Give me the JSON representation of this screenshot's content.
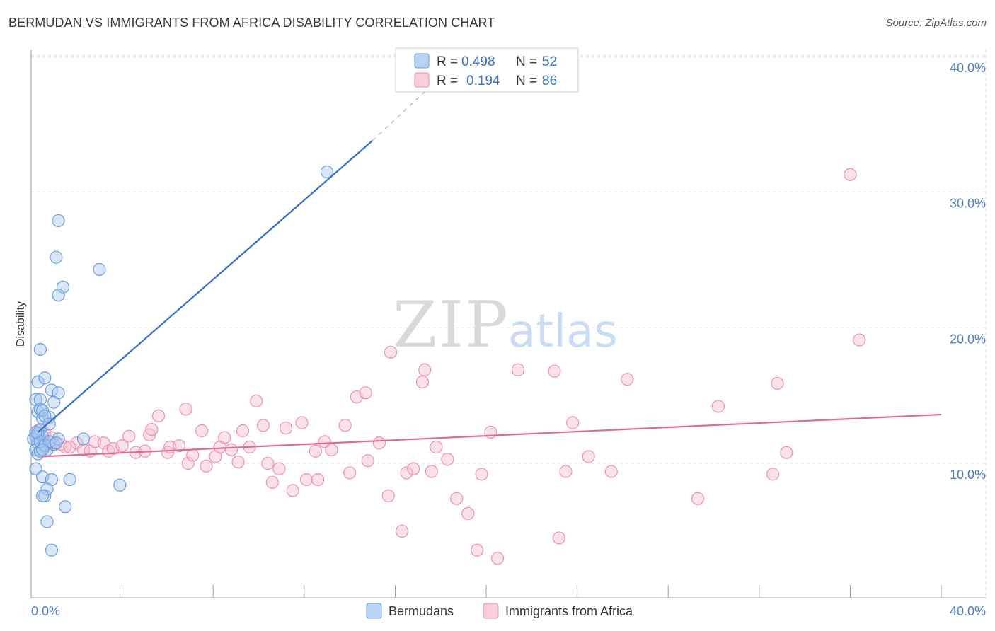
{
  "title": "BERMUDAN VS IMMIGRANTS FROM AFRICA DISABILITY CORRELATION CHART",
  "source": "Source: ZipAtlas.com",
  "watermark": {
    "zip": "ZIP",
    "atlas": "atlas"
  },
  "legend": {
    "rows": [
      {
        "r_label": "R =",
        "r_value": "0.498",
        "n_label": "N =",
        "n_value": "52"
      },
      {
        "r_label": "R =",
        "r_value": "0.194",
        "n_label": "N =",
        "n_value": "86"
      }
    ]
  },
  "bottom_legend": [
    "Bermudans",
    "Immigrants from Africa"
  ],
  "colors": {
    "blue_fill": "#a9c8f0",
    "blue_stroke": "#6a9ee0",
    "blue_line": "#2f6fcf",
    "pink_fill": "#f6bfd0",
    "pink_stroke": "#ee8fb0",
    "pink_line": "#e06a94",
    "grid": "#dddddd",
    "tick_label": "#4a7cc9"
  },
  "chart_data": {
    "type": "scatter",
    "title": "BERMUDAN VS IMMIGRANTS FROM AFRICA DISABILITY CORRELATION CHART",
    "xlabel": "",
    "ylabel": "Disability",
    "xlim": [
      0,
      40
    ],
    "ylim": [
      0,
      42
    ],
    "x_tick_labels": [
      "0.0%",
      "40.0%"
    ],
    "y_ticks": [
      10,
      20,
      30,
      40
    ],
    "y_tick_labels": [
      "10.0%",
      "20.0%",
      "30.0%",
      "40.0%"
    ],
    "series": [
      {
        "name": "Bermudans",
        "r": 0.498,
        "n": 52,
        "trend": {
          "x0": 0.3,
          "y0": 12.3,
          "x1": 15.0,
          "y1": 33.8,
          "dash_x1": 18.0,
          "dash_y1": 38.5
        },
        "points": [
          [
            0.2,
            12.0
          ],
          [
            0.3,
            11.5
          ],
          [
            0.1,
            11.8
          ],
          [
            0.2,
            11.0
          ],
          [
            0.4,
            12.5
          ],
          [
            0.3,
            13.8
          ],
          [
            0.5,
            13.3
          ],
          [
            0.2,
            14.7
          ],
          [
            0.4,
            14.7
          ],
          [
            0.3,
            16.0
          ],
          [
            0.6,
            16.3
          ],
          [
            0.9,
            15.4
          ],
          [
            1.2,
            15.2
          ],
          [
            1.0,
            14.5
          ],
          [
            0.8,
            13.4
          ],
          [
            0.5,
            12.0
          ],
          [
            0.6,
            11.4
          ],
          [
            0.7,
            11.0
          ],
          [
            1.0,
            11.4
          ],
          [
            1.2,
            11.8
          ],
          [
            0.3,
            10.7
          ],
          [
            0.4,
            10.9
          ],
          [
            0.2,
            9.6
          ],
          [
            0.5,
            9.0
          ],
          [
            0.9,
            8.8
          ],
          [
            1.7,
            8.8
          ],
          [
            0.7,
            8.1
          ],
          [
            0.6,
            7.6
          ],
          [
            0.5,
            7.6
          ],
          [
            1.5,
            6.8
          ],
          [
            0.7,
            5.7
          ],
          [
            0.9,
            3.6
          ],
          [
            0.4,
            18.4
          ],
          [
            1.4,
            23.0
          ],
          [
            1.2,
            22.4
          ],
          [
            1.1,
            25.2
          ],
          [
            1.2,
            27.9
          ],
          [
            3.0,
            24.3
          ],
          [
            3.9,
            8.4
          ],
          [
            2.3,
            11.8
          ],
          [
            13.0,
            31.5
          ],
          [
            0.4,
            14.0
          ],
          [
            0.5,
            13.9
          ],
          [
            0.6,
            13.5
          ],
          [
            0.8,
            12.9
          ],
          [
            0.3,
            12.2
          ],
          [
            0.4,
            11.6
          ],
          [
            0.6,
            11.3
          ],
          [
            0.8,
            11.6
          ],
          [
            1.1,
            11.5
          ],
          [
            0.2,
            12.3
          ],
          [
            0.5,
            11.0
          ]
        ]
      },
      {
        "name": "Immigrants from Africa",
        "r": 0.194,
        "n": 86,
        "trend": {
          "x0": 0.5,
          "y0": 10.5,
          "x1": 40.0,
          "y1": 13.6
        },
        "points": [
          [
            0.3,
            12.4
          ],
          [
            0.6,
            12.2
          ],
          [
            0.9,
            11.5
          ],
          [
            1.3,
            11.4
          ],
          [
            1.5,
            11.2
          ],
          [
            2.0,
            11.5
          ],
          [
            2.3,
            11.0
          ],
          [
            2.6,
            10.9
          ],
          [
            2.8,
            11.6
          ],
          [
            3.2,
            11.5
          ],
          [
            3.4,
            10.9
          ],
          [
            3.6,
            11.1
          ],
          [
            4.0,
            11.3
          ],
          [
            4.3,
            12.0
          ],
          [
            4.6,
            10.8
          ],
          [
            5.0,
            10.9
          ],
          [
            5.2,
            12.1
          ],
          [
            5.3,
            12.5
          ],
          [
            5.6,
            13.5
          ],
          [
            6.0,
            10.8
          ],
          [
            6.1,
            11.2
          ],
          [
            6.5,
            11.3
          ],
          [
            6.8,
            14.0
          ],
          [
            6.9,
            10.0
          ],
          [
            7.1,
            10.6
          ],
          [
            7.5,
            12.4
          ],
          [
            7.7,
            9.8
          ],
          [
            8.1,
            10.5
          ],
          [
            8.3,
            11.2
          ],
          [
            8.5,
            11.9
          ],
          [
            8.8,
            11.0
          ],
          [
            9.1,
            10.1
          ],
          [
            9.3,
            12.4
          ],
          [
            9.6,
            11.2
          ],
          [
            9.9,
            14.6
          ],
          [
            10.2,
            12.8
          ],
          [
            10.4,
            10.0
          ],
          [
            10.6,
            8.6
          ],
          [
            10.9,
            9.6
          ],
          [
            11.2,
            12.6
          ],
          [
            11.5,
            8.0
          ],
          [
            11.9,
            13.0
          ],
          [
            12.1,
            8.8
          ],
          [
            12.5,
            10.9
          ],
          [
            12.6,
            8.8
          ],
          [
            12.9,
            11.6
          ],
          [
            13.2,
            11.0
          ],
          [
            13.8,
            12.8
          ],
          [
            14.0,
            9.3
          ],
          [
            14.3,
            14.9
          ],
          [
            14.7,
            15.2
          ],
          [
            14.8,
            10.2
          ],
          [
            15.3,
            11.5
          ],
          [
            15.7,
            7.6
          ],
          [
            15.8,
            18.2
          ],
          [
            16.3,
            5.0
          ],
          [
            16.5,
            9.3
          ],
          [
            16.8,
            9.6
          ],
          [
            17.2,
            16.0
          ],
          [
            17.3,
            16.9
          ],
          [
            17.6,
            9.4
          ],
          [
            17.8,
            11.2
          ],
          [
            18.3,
            10.3
          ],
          [
            18.7,
            7.4
          ],
          [
            19.2,
            6.3
          ],
          [
            19.6,
            3.6
          ],
          [
            19.8,
            9.2
          ],
          [
            20.2,
            12.3
          ],
          [
            20.5,
            3.0
          ],
          [
            21.4,
            16.9
          ],
          [
            23.0,
            16.8
          ],
          [
            23.2,
            4.5
          ],
          [
            23.5,
            9.4
          ],
          [
            23.8,
            13.0
          ],
          [
            24.5,
            10.5
          ],
          [
            25.5,
            9.4
          ],
          [
            26.2,
            16.2
          ],
          [
            29.3,
            7.4
          ],
          [
            30.2,
            14.2
          ],
          [
            32.6,
            9.2
          ],
          [
            32.8,
            15.9
          ],
          [
            33.2,
            10.8
          ],
          [
            36.0,
            31.3
          ],
          [
            36.4,
            19.1
          ],
          [
            1.7,
            11.2
          ],
          [
            0.9,
            11.9
          ]
        ]
      }
    ]
  }
}
